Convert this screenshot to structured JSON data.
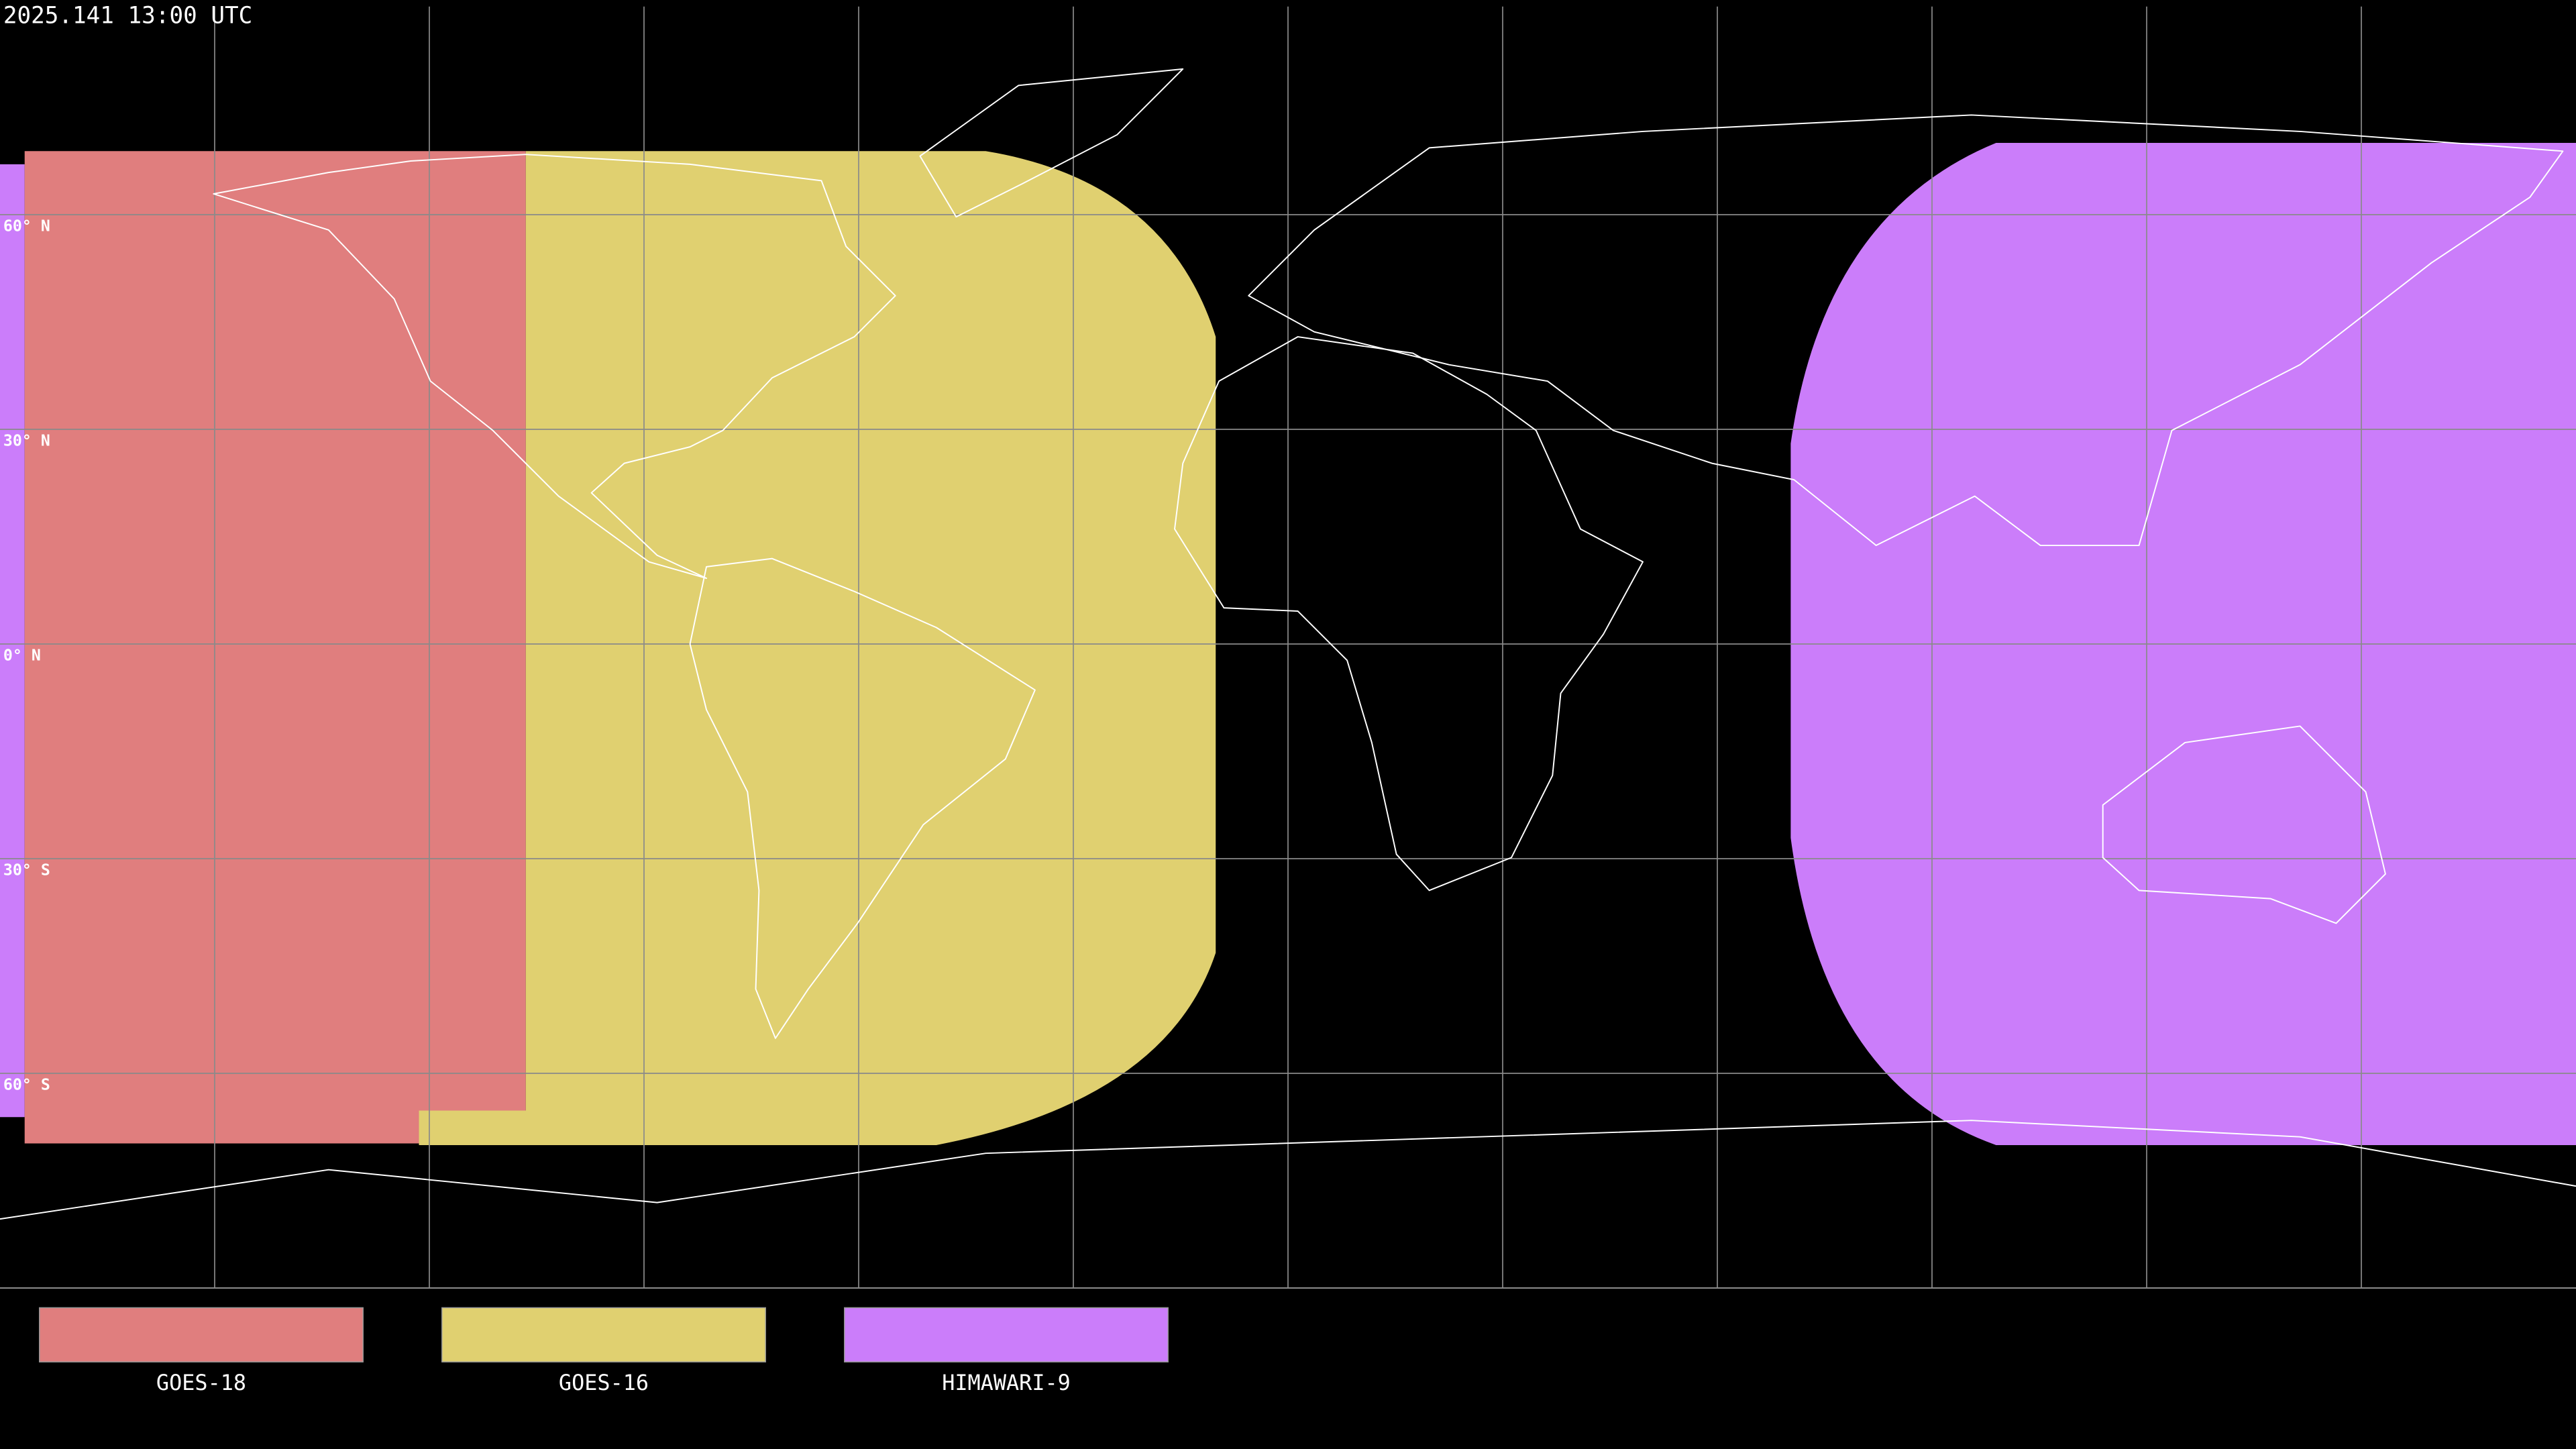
{
  "timestamp": "2025.141 13:00 UTC",
  "latitude_labels": [
    "60° N",
    "30° N",
    "0° N",
    "30° S",
    "60° S"
  ],
  "legend": [
    {
      "name": "GOES-18",
      "color": "#e07e7e"
    },
    {
      "name": "GOES-16",
      "color": "#e0d070"
    },
    {
      "name": "HIMAWARI-9",
      "color": "#cb7dfa"
    }
  ]
}
